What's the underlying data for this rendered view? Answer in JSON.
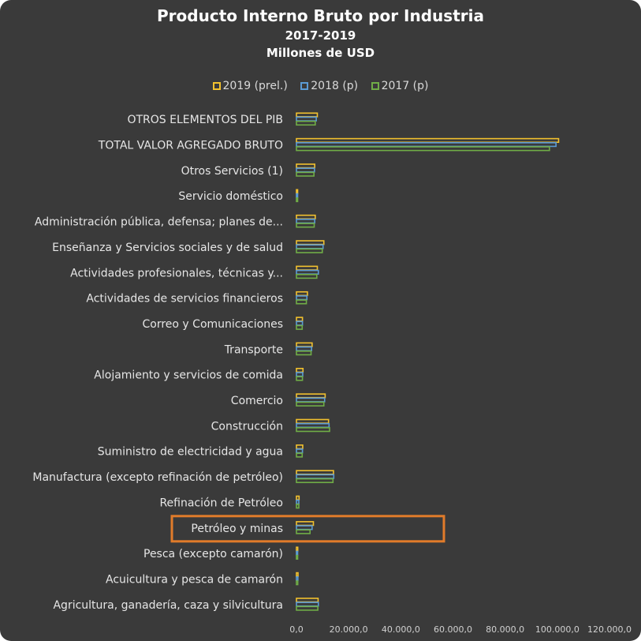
{
  "chart_data": {
    "type": "bar",
    "orientation": "horizontal",
    "title": "Producto Interno Bruto por Industria",
    "subtitle": "2017-2019",
    "units": "Millones de USD",
    "categories": [
      "OTROS ELEMENTOS DEL PIB",
      "TOTAL VALOR AGREGADO BRUTO",
      "Otros Servicios (1)",
      "Servicio doméstico",
      "Administración pública, defensa; planes de...",
      "Enseñanza  y Servicios sociales y de salud",
      "Actividades profesionales, técnicas y...",
      "Actividades de servicios financieros",
      "Correo y Comunicaciones",
      "Transporte",
      "Alojamiento y servicios de comida",
      "Comercio",
      "Construcción",
      "Suministro de electricidad y agua",
      "Manufactura (excepto refinación de petróleo)",
      "Refinación de Petróleo",
      "Petróleo y minas",
      "Pesca (excepto camarón)",
      "Acuicultura y pesca de camarón",
      "Agricultura, ganadería, caza y silvicultura"
    ],
    "series": [
      {
        "name": "2019 (prel.)",
        "color": "#f2c12e",
        "values": [
          8000,
          100500,
          7000,
          300,
          7200,
          10500,
          8000,
          4200,
          2300,
          6000,
          2500,
          11000,
          12300,
          2400,
          14200,
          1000,
          6500,
          500,
          600,
          8300
        ]
      },
      {
        "name": "2018 (p)",
        "color": "#5b9bd5",
        "values": [
          7600,
          99500,
          6900,
          300,
          7000,
          10200,
          8400,
          4000,
          2300,
          5800,
          2400,
          10800,
          12500,
          2300,
          14300,
          900,
          6000,
          450,
          550,
          8400
        ]
      },
      {
        "name": "2017 (p)",
        "color": "#70ad47",
        "values": [
          7200,
          97000,
          6700,
          300,
          6800,
          9900,
          7800,
          3800,
          2200,
          5600,
          2300,
          10500,
          12700,
          2200,
          14000,
          900,
          5200,
          450,
          500,
          8200
        ]
      }
    ],
    "xticks": [
      "0,0",
      "20.000,0",
      "40.000,0",
      "60.000,0",
      "80.000,0",
      "100.000,0",
      "120.000,0"
    ],
    "xlim": [
      0,
      120000
    ],
    "legend_position": "top",
    "grid": false,
    "highlight_category": "Petróleo y minas",
    "highlight_color": "#e07b2a"
  }
}
